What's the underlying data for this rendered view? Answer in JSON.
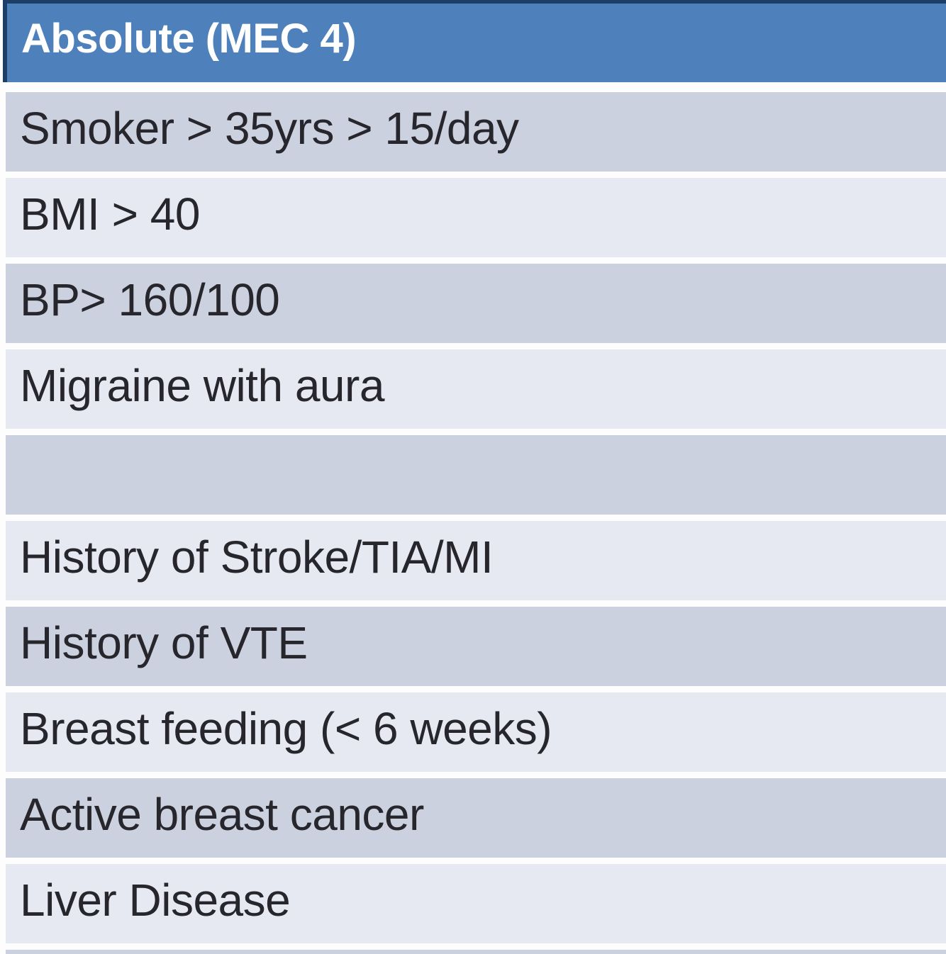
{
  "table": {
    "header": {
      "title": "Absolute (MEC 4)"
    },
    "rows": [
      {
        "text": "Smoker > 35yrs > 15/day",
        "shade": "dark"
      },
      {
        "text": "BMI > 40",
        "shade": "light"
      },
      {
        "text": "BP> 160/100",
        "shade": "dark"
      },
      {
        "text": "Migraine with aura",
        "shade": "light"
      },
      {
        "text": "",
        "shade": "dark"
      },
      {
        "text": "History of Stroke/TIA/MI",
        "shade": "light"
      },
      {
        "text": "History of VTE",
        "shade": "dark"
      },
      {
        "text": "Breast feeding (< 6 weeks)",
        "shade": "light"
      },
      {
        "text": "Active breast cancer",
        "shade": "dark"
      },
      {
        "text": "Liver Disease",
        "shade": "light"
      }
    ]
  },
  "colors": {
    "header_bg": "#4e80bc",
    "header_border": "#1d3e66",
    "header_text": "#ffffff",
    "row_dark": "#ccd1e0",
    "row_light": "#e7e9f2",
    "row_text": "#26262c",
    "gap": "#fdfdfe"
  }
}
